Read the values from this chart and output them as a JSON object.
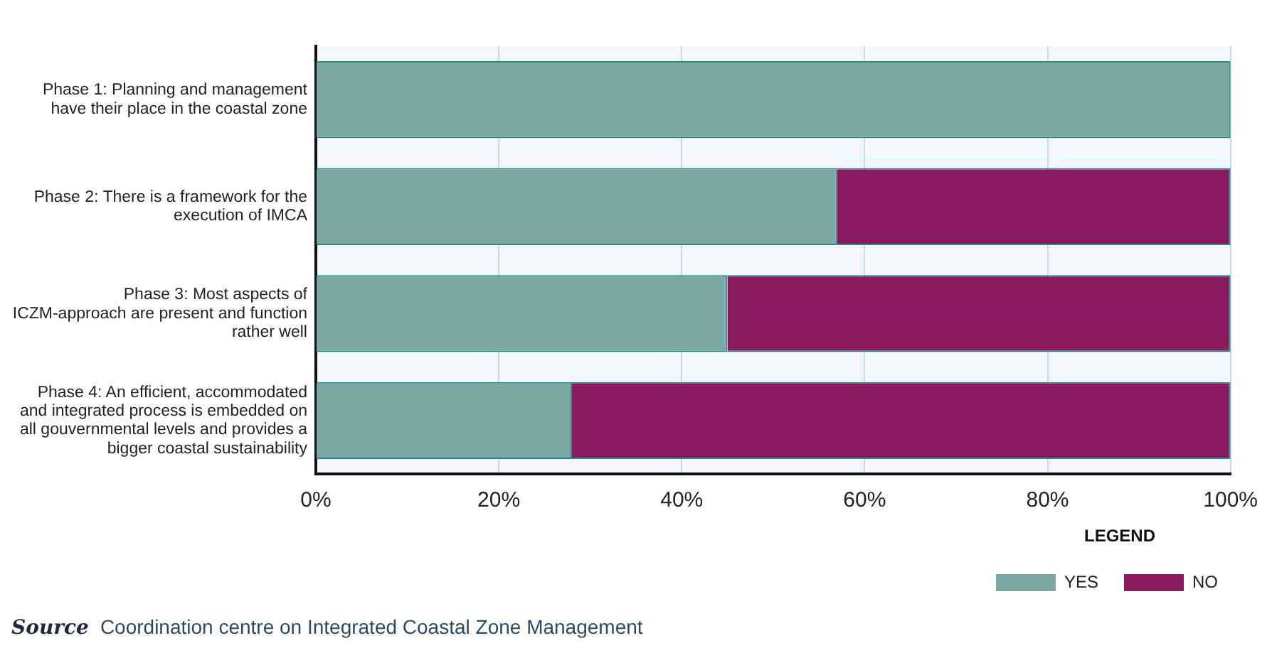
{
  "chart_data": {
    "type": "bar",
    "orientation": "horizontal",
    "stacked": true,
    "categories": [
      "Phase 1: Planning and management have their place in the coastal zone",
      "Phase 2: There is a framework for the execution of IMCA",
      "Phase 3: Most aspects of ICZM-approach are present and function rather well",
      "Phase 4: An efficient, accommodated and integrated process is embedded on all gouvernmental levels and provides a bigger coastal sustainability"
    ],
    "series": [
      {
        "name": "YES",
        "color": "#7ba8a4",
        "values": [
          100,
          57,
          45,
          28
        ]
      },
      {
        "name": "NO",
        "color": "#8b1a5e",
        "values": [
          0,
          43,
          55,
          72
        ]
      }
    ],
    "xlim": [
      0,
      100
    ],
    "xticks": [
      {
        "value": 0,
        "label": "0%"
      },
      {
        "value": 20,
        "label": "20%"
      },
      {
        "value": 40,
        "label": "40%"
      },
      {
        "value": 60,
        "label": "60%"
      },
      {
        "value": 80,
        "label": "80%"
      },
      {
        "value": 100,
        "label": "100%"
      }
    ],
    "grid": "x",
    "legend": "bottom right",
    "legend_title": "LEGEND",
    "annotations": [
      "Source Coordination centre on Integrated Coastal Zone Management"
    ]
  }
}
